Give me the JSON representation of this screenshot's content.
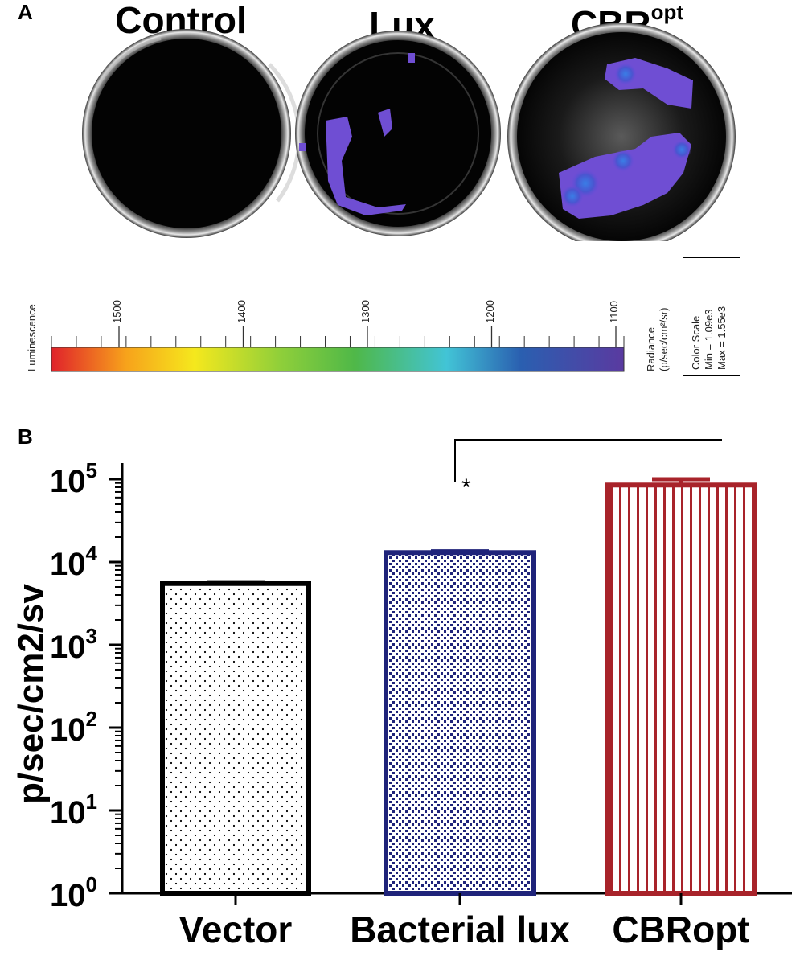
{
  "panels": {
    "a_label": "A",
    "b_label": "B"
  },
  "wells": [
    {
      "title": "Control",
      "sup": ""
    },
    {
      "title": "Lux",
      "sup": ""
    },
    {
      "title": "CBR",
      "sup": "opt"
    }
  ],
  "color_scale": {
    "left_label": "Luminescence",
    "ticks": [
      "1500",
      "1400",
      "1300",
      "1200",
      "1100"
    ],
    "tick_values": [
      1500,
      1400,
      1300,
      1200,
      1100
    ],
    "radiance_label": "Radiance",
    "radiance_units": "(p/sec/cm²/sr)",
    "box_title": "Color Scale",
    "box_min": "Min = 1.09e3",
    "box_max": "Max = 1.55e3",
    "colors": [
      "#e0222b",
      "#f7a21b",
      "#f5e81d",
      "#8fcf3a",
      "#4fb848",
      "#42c4d6",
      "#2a5fb0",
      "#5a3aa0"
    ]
  },
  "chart_data": {
    "type": "bar",
    "categories": [
      "Vector",
      "Bacterial lux",
      "CBRopt"
    ],
    "values": [
      5500,
      13000,
      85000
    ],
    "error_upper": [
      5700,
      13500,
      100000
    ],
    "ylabel": "p/sec/cm2/sv",
    "yscale": "log",
    "ylim": [
      1,
      100000
    ],
    "yticks": [
      {
        "base": "10",
        "exp": "0"
      },
      {
        "base": "10",
        "exp": "1"
      },
      {
        "base": "10",
        "exp": "2"
      },
      {
        "base": "10",
        "exp": "3"
      },
      {
        "base": "10",
        "exp": "4"
      },
      {
        "base": "10",
        "exp": "5"
      }
    ],
    "bar_colors": [
      "#000000",
      "#1f237a",
      "#a8232a"
    ],
    "bar_patterns": [
      "dots",
      "checker",
      "vertical-stripes"
    ],
    "significance": {
      "from": "Bacterial lux",
      "to": "CBRopt",
      "label": "*"
    }
  }
}
